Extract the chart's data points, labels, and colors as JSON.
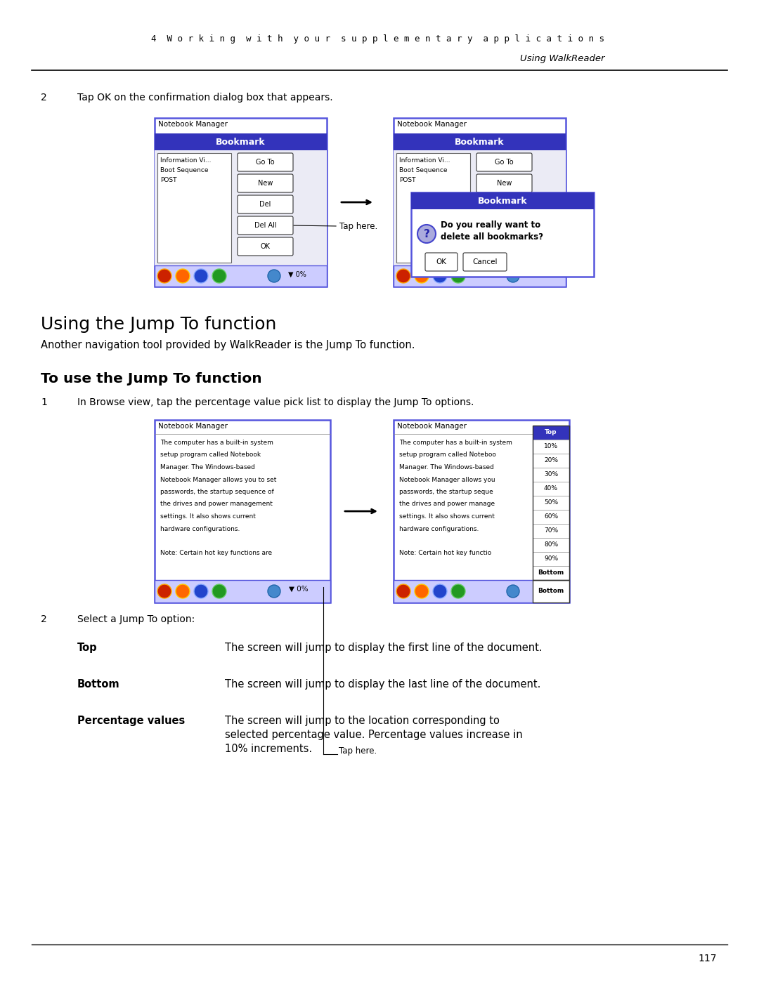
{
  "page_width": 10.8,
  "page_height": 13.97,
  "dpi": 100,
  "bg_color": "#ffffff",
  "header_line1": "4  W o r k i n g  w i t h  y o u r  s u p p l e m e n t a r y  a p p l i c a t i o n s",
  "header_line2": "Using WalkReader",
  "step2_label": "2",
  "step2_text": "Tap OK on the confirmation dialog box that appears.",
  "section_title": "Using the Jump To function",
  "section_desc": "Another navigation tool provided by WalkReader is the Jump To function.",
  "subsection_title": "To use the Jump To function",
  "step1_label": "1",
  "step1_text": "In Browse view, tap the percentage value pick list to display the Jump To options.",
  "step2b_label": "2",
  "step2b_text": "Select a Jump To option:",
  "top_bold": "Top",
  "top_desc": "The screen will jump to display the first line of the document.",
  "bottom_bold": "Bottom",
  "bottom_desc": "The screen will jump to display the last line of the document.",
  "pct_bold": "Percentage values",
  "pct_desc_lines": [
    "The screen will jump to the location corresponding to",
    "selected percentage value. Percentage values increase in",
    "10% increments."
  ],
  "page_num": "117",
  "blue_header": "#3333bb",
  "blue_border": "#5555dd",
  "light_blue_bg": "#ccccff",
  "tap_here": "Tap here.",
  "nb_manager": "Notebook Manager",
  "bookmark_title": "Bookmark",
  "info_vi": "Information Vi...",
  "boot_seq": "Boot Sequence",
  "post": "POST",
  "goto_btn": "Go To",
  "new_btn": "New",
  "del_btn": "Del",
  "delall_btn": "Del All",
  "ok_btn": "OK",
  "cancel_btn": "Cancel",
  "confirm_msg1": "Do you really want to",
  "confirm_msg2": "delete all bookmarks?",
  "pct_display": "▼ 0%",
  "top_item": "Top",
  "pct_items": [
    "10%",
    "20%",
    "30%",
    "40%",
    "50%",
    "60%",
    "70%",
    "80%",
    "90%"
  ],
  "bottom_item": "Bottom",
  "nb_body_lines": [
    "The computer has a built-in system",
    "setup program called Notebook",
    "Manager. The Windows-based",
    "Notebook Manager allows you to set",
    "passwords, the startup sequence of",
    "the drives and power management",
    "settings. It also shows current",
    "hardware configurations.",
    "",
    "Note: Certain hot key functions are"
  ],
  "nb_body_lines_truncated": [
    "The computer has a built-in system",
    "setup program called Noteboo",
    "Manager. The Windows-based",
    "Notebook Manager allows you",
    "passwords, the startup seque",
    "the drives and power manage",
    "settings. It also shows current",
    "hardware configurations.",
    "",
    "Note: Certain hot key functio"
  ],
  "bg_letters": [
    "T",
    "se",
    "M",
    "N",
    "pa",
    "th",
    "se",
    "ha",
    "",
    "N"
  ]
}
